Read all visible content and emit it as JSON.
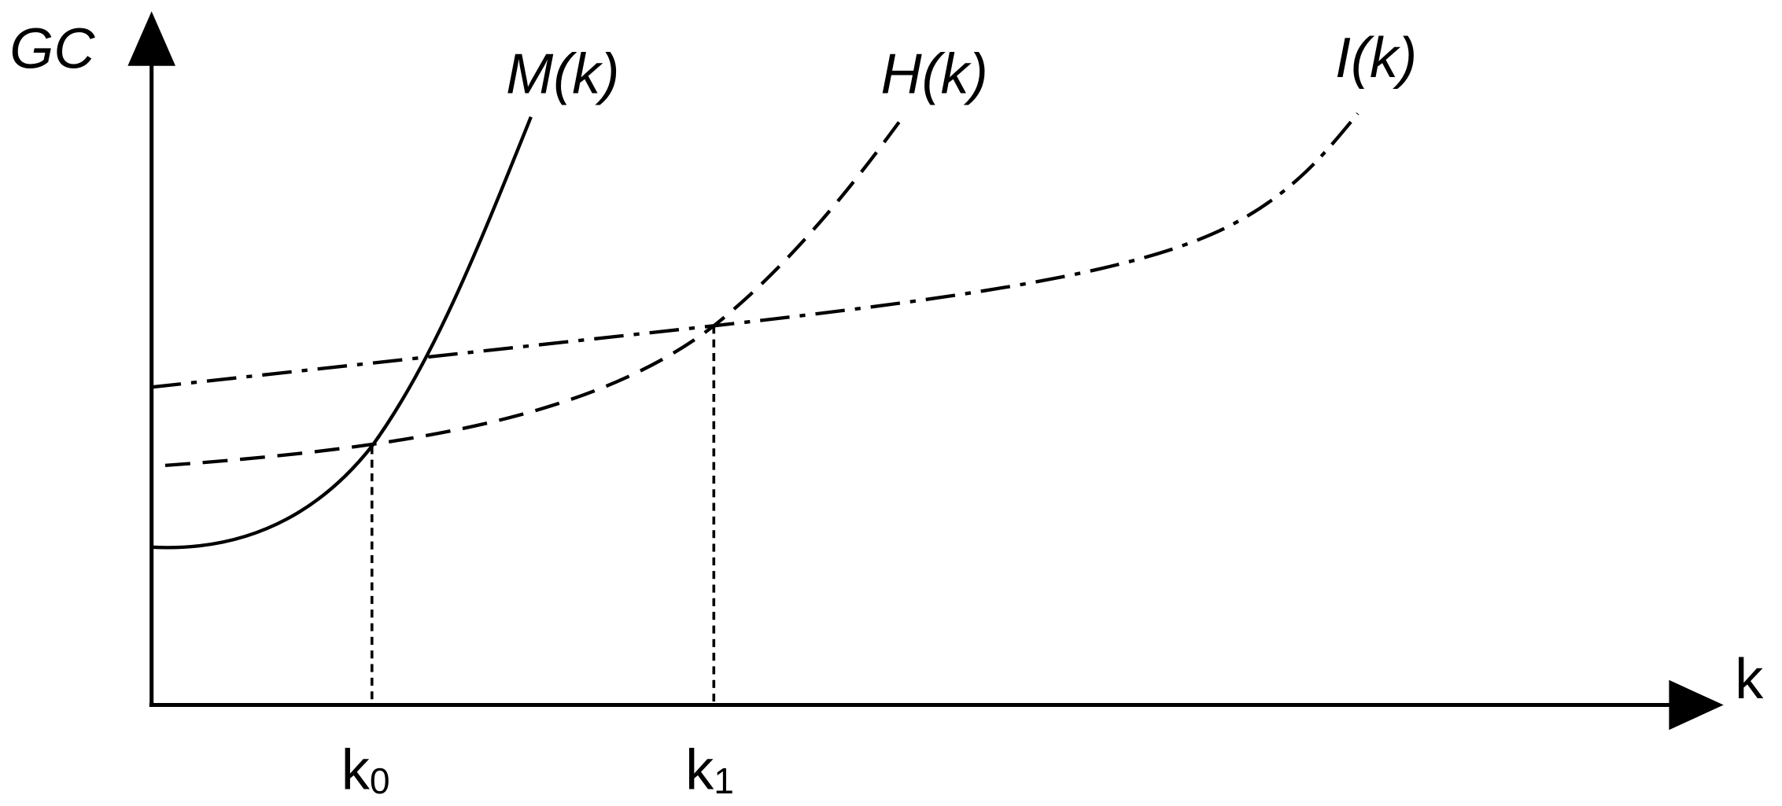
{
  "axes": {
    "y_label": "GC",
    "x_label": "k"
  },
  "curves": [
    {
      "label": "M(k)"
    },
    {
      "label": "H(k)"
    },
    {
      "label": "I(k)"
    }
  ],
  "points": [
    {
      "base": "k",
      "sub": "0"
    },
    {
      "base": "k",
      "sub": "1"
    }
  ]
}
